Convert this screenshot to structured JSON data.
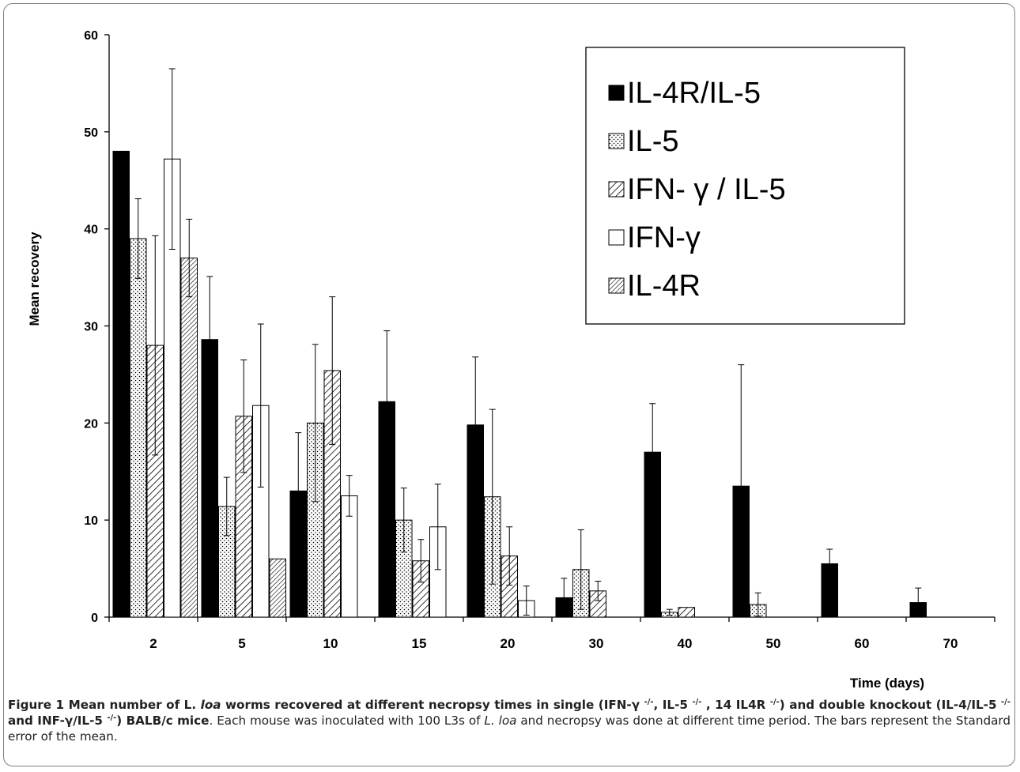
{
  "chart_data": {
    "type": "bar",
    "xlabel": "Time (days)",
    "ylabel": "Mean recovery",
    "ylim": [
      0,
      60
    ],
    "yticks": [
      "0",
      "10",
      "20",
      "30",
      "40",
      "50",
      "60"
    ],
    "categories": [
      "2",
      "5",
      "10",
      "15",
      "20",
      "30",
      "40",
      "50",
      "60",
      "70"
    ],
    "grid": false,
    "legend_position": "top-right",
    "series": [
      {
        "name": "IL-4R/IL-5",
        "fill": "solid",
        "values": [
          48,
          28.6,
          13,
          22.2,
          19.8,
          2,
          17,
          13.5,
          5.5,
          1.5
        ],
        "errors": [
          0,
          6.5,
          6,
          7.3,
          7,
          2,
          5,
          12.5,
          1.5,
          1.5
        ]
      },
      {
        "name": "IL-5",
        "fill": "dots",
        "values": [
          39,
          11.4,
          20,
          10,
          12.4,
          4.9,
          0.5,
          1.3,
          0,
          0
        ],
        "errors": [
          4.1,
          3,
          8.1,
          3.3,
          9,
          4.1,
          0.3,
          1.2,
          0,
          0
        ]
      },
      {
        "name": "IFN- γ / IL-5",
        "fill": "hatch",
        "values": [
          28,
          20.7,
          25.4,
          5.8,
          6.3,
          2.7,
          1,
          0,
          0,
          0
        ],
        "errors": [
          11.3,
          5.8,
          7.6,
          2.2,
          3,
          1,
          0,
          0,
          0,
          0
        ]
      },
      {
        "name": "IFN-γ",
        "fill": "white",
        "values": [
          47.2,
          21.8,
          12.5,
          9.3,
          1.7,
          0,
          0,
          0,
          0,
          0
        ],
        "errors": [
          9.3,
          8.4,
          2.1,
          4.4,
          1.5,
          0,
          0,
          0,
          0,
          0
        ]
      },
      {
        "name": "IL-4R",
        "fill": "dense-hatch",
        "values": [
          37,
          6,
          0,
          0,
          0,
          0,
          0,
          0,
          0,
          0
        ],
        "errors": [
          4,
          0,
          0,
          0,
          0,
          0,
          0,
          0,
          0,
          0
        ]
      }
    ]
  },
  "caption": {
    "label": "Figure 1",
    "bold_1": " Mean number of L. ",
    "bold_italic_1": "loa",
    "bold_2": " worms recovered at different necropsy times in single (IFN-γ ",
    "sup_1": "-/-",
    "bold_3": ", IL-5 ",
    "sup_2": "-/-",
    "bold_4": " , 14 IL4R ",
    "sup_3": "-/-",
    "bold_5": ") and double knockout (IL-4/IL-5 ",
    "sup_4": "-/-",
    "bold_6": " and INF-γ/IL-5 ",
    "sup_5": "-/-",
    "bold_7": ") BALB/c mice",
    "plain_1": ". Each mouse was inoculated with 100 L3s of ",
    "italic_1": "L. loa",
    "plain_2": " and necropsy was done at different time period. The bars represent the Standard error of the mean."
  }
}
